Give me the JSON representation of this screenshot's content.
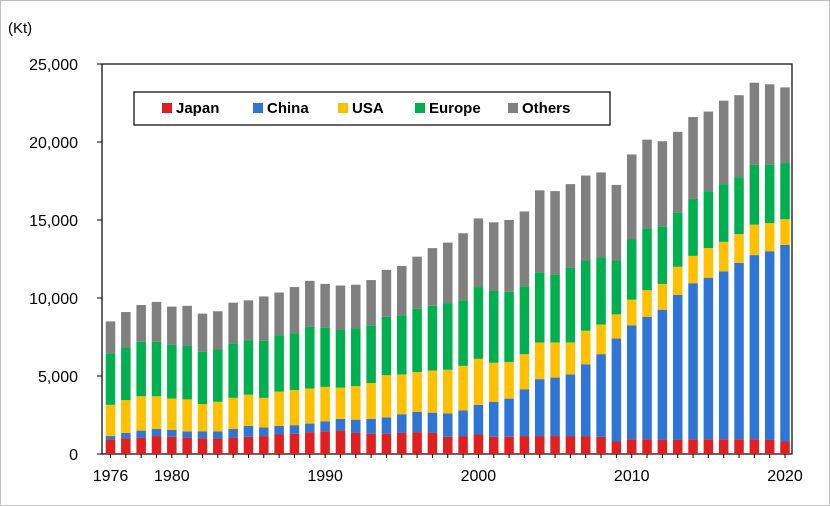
{
  "chart_data": {
    "type": "bar",
    "stacked": true,
    "unit_label": "(Kt)",
    "title": "",
    "xlabel": "",
    "ylabel": "",
    "ylim": [
      0,
      25000
    ],
    "y_ticks": [
      0,
      5000,
      10000,
      15000,
      20000,
      25000
    ],
    "y_tick_labels": [
      "0",
      "5,000",
      "10,000",
      "15,000",
      "20,000",
      "25,000"
    ],
    "x_tick_labels": [
      {
        "year": 1976,
        "label": "1976"
      },
      {
        "year": 1980,
        "label": "1980"
      },
      {
        "year": 1990,
        "label": "1990"
      },
      {
        "year": 2000,
        "label": "2000"
      },
      {
        "year": 2010,
        "label": "2010"
      },
      {
        "year": 2020,
        "label": "2020"
      }
    ],
    "grid": false,
    "legend_position": "top-left",
    "categories": [
      1976,
      1977,
      1978,
      1979,
      1980,
      1981,
      1982,
      1983,
      1984,
      1985,
      1986,
      1987,
      1988,
      1989,
      1990,
      1991,
      1992,
      1993,
      1994,
      1995,
      1996,
      1997,
      1998,
      1999,
      2000,
      2001,
      2002,
      2003,
      2004,
      2005,
      2006,
      2007,
      2008,
      2009,
      2010,
      2011,
      2012,
      2013,
      2014,
      2015,
      2016,
      2017,
      2018,
      2019,
      2020
    ],
    "series": [
      {
        "name": "Japan",
        "color": "#e02020",
        "values": [
          900,
          1000,
          1050,
          1150,
          1100,
          1050,
          1000,
          1000,
          1050,
          1100,
          1150,
          1250,
          1300,
          1400,
          1450,
          1500,
          1350,
          1300,
          1300,
          1350,
          1400,
          1350,
          1100,
          1150,
          1250,
          1100,
          1100,
          1150,
          1150,
          1150,
          1150,
          1150,
          1100,
          800,
          950,
          950,
          900,
          900,
          950,
          950,
          950,
          950,
          950,
          900,
          800
        ]
      },
      {
        "name": "China",
        "color": "#2e75d6",
        "values": [
          250,
          350,
          450,
          450,
          450,
          400,
          450,
          450,
          550,
          700,
          550,
          550,
          550,
          550,
          650,
          750,
          850,
          950,
          1050,
          1200,
          1300,
          1300,
          1500,
          1650,
          1900,
          2250,
          2450,
          3000,
          3650,
          3750,
          3950,
          4600,
          5300,
          6600,
          7300,
          7850,
          8350,
          9300,
          10000,
          10350,
          10750,
          11300,
          11800,
          12100,
          12600
        ]
      },
      {
        "name": "USA",
        "color": "#ffc000",
        "values": [
          2000,
          2100,
          2200,
          2100,
          2000,
          2050,
          1750,
          1900,
          2000,
          2000,
          1900,
          2200,
          2250,
          2250,
          2200,
          2000,
          2150,
          2300,
          2700,
          2550,
          2550,
          2700,
          2800,
          2850,
          2950,
          2500,
          2350,
          2250,
          2350,
          2250,
          2050,
          2150,
          1900,
          1550,
          1650,
          1700,
          1650,
          1800,
          1750,
          1900,
          1900,
          1850,
          1950,
          1800,
          1650
        ]
      },
      {
        "name": "Europe",
        "color": "#00b050",
        "values": [
          3300,
          3400,
          3500,
          3500,
          3450,
          3450,
          3350,
          3350,
          3500,
          3500,
          3650,
          3600,
          3650,
          3950,
          3800,
          3700,
          3700,
          3700,
          3750,
          3800,
          4050,
          4150,
          4250,
          4200,
          4600,
          4600,
          4500,
          4350,
          4500,
          4350,
          4800,
          4500,
          4300,
          3450,
          3850,
          3950,
          3700,
          3500,
          3650,
          3650,
          3700,
          3650,
          3850,
          3750,
          3600
        ]
      },
      {
        "name": "Others",
        "color": "#808080",
        "values": [
          2050,
          2250,
          2350,
          2550,
          2450,
          2550,
          2450,
          2450,
          2600,
          2550,
          2850,
          2750,
          2950,
          2950,
          2800,
          2850,
          2800,
          2900,
          3000,
          3150,
          3350,
          3700,
          3900,
          4300,
          4400,
          4400,
          4600,
          4800,
          5250,
          5350,
          5350,
          5450,
          5450,
          4850,
          5450,
          5700,
          5450,
          5150,
          5250,
          5100,
          5350,
          5250,
          5250,
          5150,
          4850
        ]
      }
    ]
  }
}
